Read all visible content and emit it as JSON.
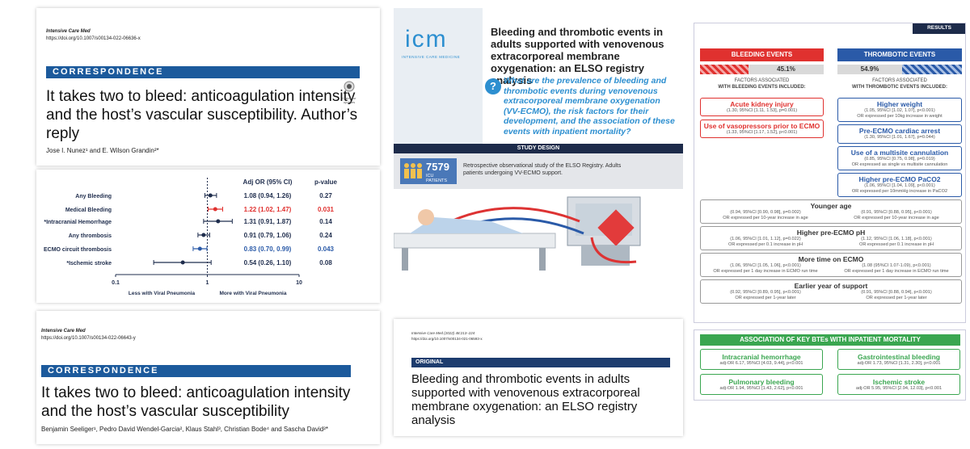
{
  "correspondence_reply": {
    "journal": "Intensive Care Med",
    "doi": "https://doi.org/10.1007/s00134-022-06636-x",
    "section": "CORRESPONDENCE",
    "title": "It takes two to bleed: anticoagulation intensity and the host’s vascular susceptibility. Author’s reply",
    "badge": "Check for updates",
    "authors": "Jose I. Nunez¹ and E. Wilson Grandin²*"
  },
  "forest_plot": {
    "type": "forest",
    "headers": {
      "or": "Adj OR (95% CI)",
      "p": "p-value"
    },
    "xscale": "log",
    "xlim": [
      0.1,
      10
    ],
    "xticks": [
      0.1,
      1,
      10
    ],
    "left_label": "Less with Viral Pneumonia",
    "right_label": "More with Viral Pneumonia",
    "rows": [
      {
        "label": "Any Bleeding",
        "est": 1.08,
        "lo": 0.94,
        "hi": 1.26,
        "ci_label": "1.08 (0.94, 1.26)",
        "p": 0.27,
        "color": "#1f2d4d"
      },
      {
        "label": "Medical Bleeding",
        "est": 1.22,
        "lo": 1.02,
        "hi": 1.47,
        "ci_label": "1.22 (1.02, 1.47)",
        "p": 0.031,
        "color": "#e0312f"
      },
      {
        "label": "*Intracranial Hemorrhage",
        "est": 1.31,
        "lo": 0.91,
        "hi": 1.87,
        "ci_label": "1.31 (0.91, 1.87)",
        "p": 0.14,
        "color": "#1f2d4d"
      },
      {
        "label": "Any thrombosis",
        "est": 0.91,
        "lo": 0.79,
        "hi": 1.06,
        "ci_label": "0.91 (0.79, 1.06)",
        "p": 0.24,
        "color": "#1f2d4d"
      },
      {
        "label": "ECMO circuit thrombosis",
        "est": 0.83,
        "lo": 0.7,
        "hi": 0.99,
        "ci_label": "0.83 (0.70, 0.99)",
        "p": 0.043,
        "color": "#2a5aa8"
      },
      {
        "label": "*Ischemic stroke",
        "est": 0.54,
        "lo": 0.26,
        "hi": 1.1,
        "ci_label": "0.54 (0.26, 1.10)",
        "p": 0.08,
        "color": "#1f2d4d"
      }
    ]
  },
  "correspondence": {
    "journal": "Intensive Care Med",
    "doi": "https://doi.org/10.1007/s00134-022-06643-y",
    "section": "CORRESPONDENCE",
    "title": "It takes two to bleed: anticoagulation intensity and the host’s vascular susceptibility",
    "authors": "Benjamin Seeliger¹, Pedro David Wendel-Garcia², Klaus Stahl³, Christian Bode⁴ and Sascha David²*"
  },
  "infographic": {
    "logo": "icm",
    "logo_sub": "INTENSIVE CARE MEDICINE",
    "title": "Bleeding and thrombotic events in adults supported with venovenous extracorporeal membrane oxygenation: an ELSO registry analysis",
    "question": "What are the prevalence of bleeding and thrombotic events during venovenous extracorporeal membrane oxygenation (VV-ECMO), the risk factors for their development, and the association of these events with inpatient mortality?",
    "study_design": "STUDY DESIGN",
    "patients_count": 7579,
    "patients_label": "ICU PATIENTS",
    "design_text": "Retrospective observational study of the ELSO Registry. Adults patients undergoing VV-ECMO support."
  },
  "original": {
    "journal": "Intensive Care Med (2022) 48:213–224",
    "doi": "https://doi.org/10.1007/s00134-021-06593-x",
    "section": "ORIGINAL",
    "title": "Bleeding and thrombotic events in adults supported with venovenous extracorporeal membrane oxygenation: an ELSO registry analysis"
  },
  "results": {
    "tab": "RESULTS",
    "bleeding": {
      "header": "BLEEDING EVENTS",
      "percent": "45.1%",
      "factors_line1": "FACTORS ASSOCIATED",
      "factors_line2": "WITH BLEEDING EVENTS INCLUDED:"
    },
    "thrombotic": {
      "header": "THROMBOTIC EVENTS",
      "percent": "54.9%",
      "factors_line1": "FACTORS ASSOCIATED",
      "factors_line2": "WITH THROMBOTIC EVENTS INCLUDED:"
    },
    "bleeding_factors": [
      {
        "name": "Acute kidney injury",
        "stat": "(1.30, 95%CI [1.11, 1.53], p=0.001)"
      },
      {
        "name": "Use of vasopressors prior to ECMO",
        "stat": "(1.33, 95%CI [1.17, 1.52], p<0.001)"
      }
    ],
    "thrombotic_factors": [
      {
        "name": "Higher weight",
        "stat": "(1.05, 95%CI [1.02, 1.07], p<0.001)",
        "note": "OR expressed per 10kg increase in weight"
      },
      {
        "name": "Pre-ECMO cardiac arrest",
        "stat": "(1.30, 95%CI [1.01, 1.67], p=0.044)"
      },
      {
        "name": "Use of a multisite cannulation",
        "stat": "(0.85, 95%CI [0.75, 0.98], p=0.019)",
        "note": "OR expressed as single vs multisite cannulation"
      },
      {
        "name": "Higher pre-ECMO PaCO2",
        "stat": "(1.06, 95%CI [1.04, 1.09], p<0.001)",
        "note": "OR expressed per 10mmHg increase in PaCO2"
      }
    ],
    "shared_factors": [
      {
        "name": "Younger age",
        "bleeding_stat": "(0.94, 95%CI [0.90, 0.98], p=0.002)",
        "bleeding_note": "OR expressed per 10-year increase in age",
        "thrombotic_stat": "(0.91, 95%CI [0.88, 0.95], p<0.001)",
        "thrombotic_note": "OR expressed per 10-year increase in age"
      },
      {
        "name": "Higher pre-ECMO pH",
        "bleeding_stat": "(1.06, 95%CI [1.01, 1.12], p=0.022)",
        "bleeding_note": "OR expressed per 0.1 increase in pH",
        "thrombotic_stat": "(1.12, 95%CI [1.06, 1.18], p<0.001)",
        "thrombotic_note": "OR expressed per 0.1 increase in pH"
      },
      {
        "name": "More time on ECMO",
        "bleeding_stat": "(1.06, 95%CI [1.05, 1.06], p<0.001)",
        "bleeding_note": "OR expressed per 1 day increase in ECMO run time",
        "thrombotic_stat": "(1.08 (95%CI 1.07-1.09), p<0.001)",
        "thrombotic_note": "OR expressed per 1 day increase in ECMO run time"
      },
      {
        "name": "Earlier year of support",
        "bleeding_stat": "(0.92, 95%CI [0.89, 0.95], p<0.001)",
        "bleeding_note": "OR expressed per 1-year later",
        "thrombotic_stat": "(0.91, 95%CI [0.88, 0.94], p<0.001)",
        "thrombotic_note": "OR expressed per 1-year later"
      }
    ],
    "mortality": {
      "title": "ASSOCIATION OF KEY BTEs WITH INPATIENT MORTALITY",
      "items": [
        {
          "name": "Intracranial hemorrhage",
          "stat": "adj-OR 6.17, 95%CI [4.03, 9.44], p<0.001"
        },
        {
          "name": "Gastrointestinal bleeding",
          "stat": "adj-OR 1.73, 95%CI [1.31, 2.30], p<0.001"
        },
        {
          "name": "Pulmonary bleeding",
          "stat": "adj-OR 1.94, 95%CI [1.43, 2.62], p<0.001"
        },
        {
          "name": "Ischemic stroke",
          "stat": "adj-OR 5.95, 95%CI [2.94, 12.03], p<0.001"
        }
      ]
    }
  }
}
